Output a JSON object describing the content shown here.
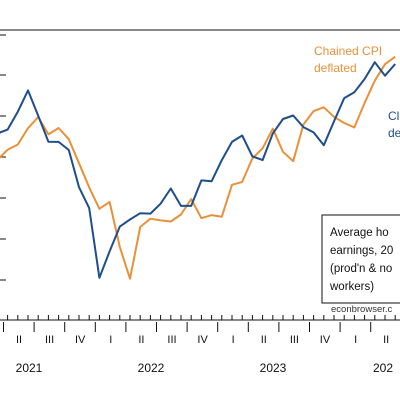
{
  "chart_data": {
    "type": "line",
    "title": "",
    "xlabel": "",
    "ylabel": "",
    "x": [
      "2020-11",
      "2020-12",
      "2021-01",
      "2021-02",
      "2021-03",
      "2021-04",
      "2021-05",
      "2021-06",
      "2021-07",
      "2021-08",
      "2021-09",
      "2021-10",
      "2021-11",
      "2021-12",
      "2022-01",
      "2022-02",
      "2022-03",
      "2022-04",
      "2022-05",
      "2022-06",
      "2022-07",
      "2022-08",
      "2022-09",
      "2022-10",
      "2022-11",
      "2022-12",
      "2023-01",
      "2023-02",
      "2023-03",
      "2023-04",
      "2023-05",
      "2023-06",
      "2023-07",
      "2023-08",
      "2023-09",
      "2023-10",
      "2023-11",
      "2023-12",
      "2024-01",
      "2024-02",
      "2024-03",
      "2024-04"
    ],
    "ylim": [
      0,
      100
    ],
    "x_tick_labels": [
      "II",
      "III",
      "IV",
      "I",
      "II",
      "III",
      "IV",
      "I",
      "II",
      "III",
      "IV",
      "I",
      "II",
      "III"
    ],
    "year_labels": [
      "2021",
      "2022",
      "2023",
      "202"
    ],
    "series": [
      {
        "name": "Chained CPI deflated",
        "color": "#e8913a",
        "values": [
          67.2,
          61.0,
          56.4,
          61.0,
          63.4,
          70.8,
          75.9,
          68.0,
          70.9,
          65.8,
          54.9,
          43.9,
          34.2,
          37.3,
          16.8,
          2.4,
          25.9,
          29.7,
          28.9,
          28.4,
          31.6,
          38.6,
          29.9,
          31.3,
          30.6,
          45.1,
          46.4,
          57.1,
          61.7,
          70.6,
          60.1,
          55.8,
          72.5,
          78.6,
          80.3,
          76.0,
          73.2,
          71.2,
          82.3,
          92.4,
          99.9,
          103.3
        ]
      },
      {
        "name": "CPI deflated",
        "color": "#1f4e8c",
        "values": [
          76.4,
          77.5,
          68.4,
          70.2,
          78.3,
          88.0,
          76.5,
          64.7,
          64.6,
          60.9,
          44.0,
          34.5,
          2.8,
          14.8,
          26.1,
          29.3,
          32.2,
          32.0,
          36.5,
          43.4,
          35.5,
          35.5,
          47.1,
          46.7,
          56.3,
          64.6,
          67.5,
          58.0,
          56.3,
          68.4,
          75.0,
          76.6,
          71.3,
          68.9,
          63.1,
          73.9,
          84.5,
          87.2,
          93.2,
          100.8,
          94.7,
          100.0
        ]
      }
    ],
    "annotations": {
      "orange_line1": "Chained CPI",
      "orange_line2": "deflated",
      "blue_line1": "Cl",
      "blue_line2": "de"
    },
    "legend_box": {
      "line1": "Average ho",
      "line2": "earnings, 20",
      "line3": "(prod'n & no",
      "line4": "workers)"
    },
    "credit": "econbrowser.c",
    "grid": false
  }
}
